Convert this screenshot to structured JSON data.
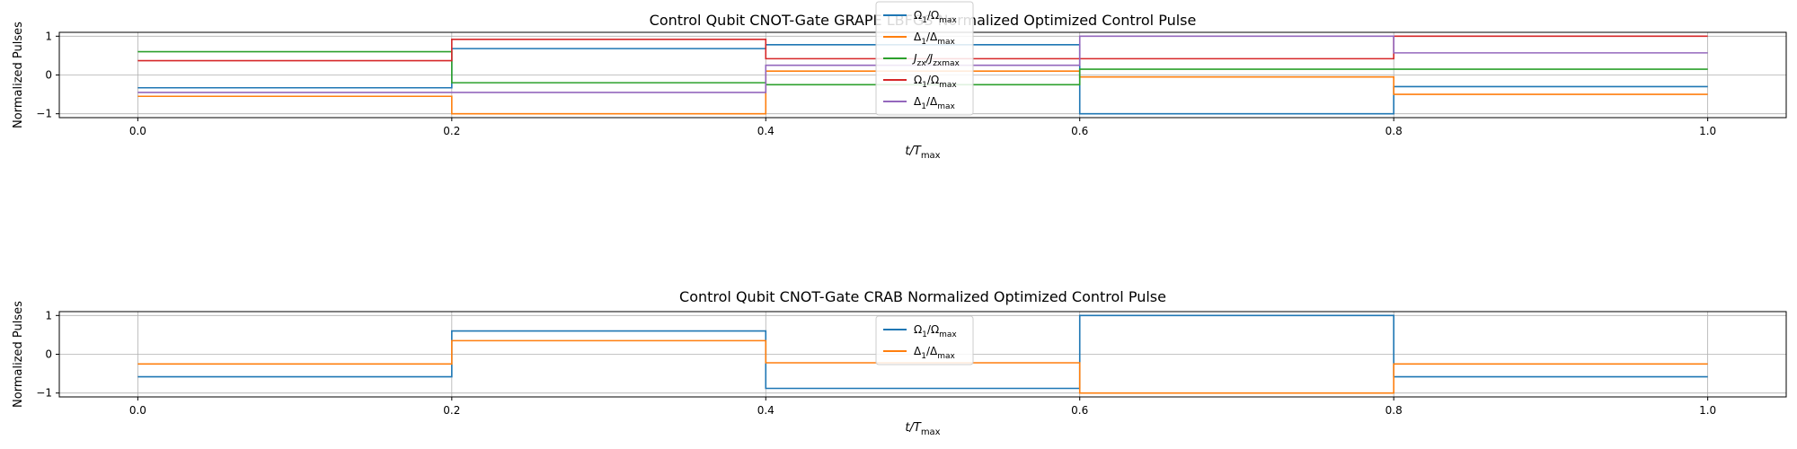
{
  "chart_data": [
    {
      "type": "line",
      "step": "post",
      "title": "Control Qubit CNOT-Gate GRAPE LBFGS Normalized Optimized Control Pulse",
      "xlabel": "t/T_max",
      "ylabel": "Normalized Pulses",
      "xlim": [
        -0.05,
        1.05
      ],
      "ylim": [
        -1.1,
        1.1
      ],
      "xticks": [
        "0.0",
        "0.2",
        "0.4",
        "0.6",
        "0.8",
        "1.0"
      ],
      "yticks": [
        "−1",
        "0",
        "1"
      ],
      "grid": true,
      "legend_position": "upper center",
      "x": [
        0.0,
        0.2,
        0.4,
        0.6,
        0.8,
        1.0
      ],
      "series": [
        {
          "name": "Ω1/Ωmax",
          "legend_main": "Ω",
          "legend_sub": "1",
          "legend_den": "Ω",
          "legend_den_sub": "max",
          "color": "#1f77b4",
          "values": [
            -0.33,
            0.68,
            0.78,
            -1.0,
            -0.3,
            -0.3
          ]
        },
        {
          "name": "Δ1/Δmax",
          "legend_main": "Δ",
          "legend_sub": "1",
          "legend_den": "Δ",
          "legend_den_sub": "max",
          "color": "#ff7f0e",
          "values": [
            -0.55,
            -1.0,
            0.1,
            -0.05,
            -0.5,
            -0.5
          ]
        },
        {
          "name": "Jzx/Jzxmax",
          "legend_main": "J",
          "legend_sub": "zx",
          "legend_den": "J",
          "legend_den_sub": "zxmax",
          "color": "#2ca02c",
          "values": [
            0.6,
            -0.2,
            -0.25,
            0.15,
            0.15,
            0.15
          ]
        },
        {
          "name": "Ω1/Ωmax",
          "legend_main": "Ω",
          "legend_sub": "1",
          "legend_den": "Ω",
          "legend_den_sub": "max",
          "color": "#d62728",
          "values": [
            0.37,
            0.92,
            0.42,
            0.42,
            1.0,
            1.0
          ]
        },
        {
          "name": "Δ1/Δmax",
          "legend_main": "Δ",
          "legend_sub": "1",
          "legend_den": "Δ",
          "legend_den_sub": "max",
          "color": "#9467bd",
          "values": [
            -0.45,
            -0.45,
            0.25,
            1.0,
            0.57,
            0.57
          ]
        }
      ]
    },
    {
      "type": "line",
      "step": "post",
      "title": "Control Qubit CNOT-Gate CRAB Normalized Optimized Control Pulse",
      "xlabel": "t/T_max",
      "ylabel": "Normalized Pulses",
      "xlim": [
        -0.05,
        1.05
      ],
      "ylim": [
        -1.1,
        1.1
      ],
      "xticks": [
        "0.0",
        "0.2",
        "0.4",
        "0.6",
        "0.8",
        "1.0"
      ],
      "yticks": [
        "−1",
        "0",
        "1"
      ],
      "grid": true,
      "legend_position": "upper center",
      "x": [
        0.0,
        0.2,
        0.4,
        0.6,
        0.8,
        1.0
      ],
      "series": [
        {
          "name": "Ω1/Ωmax",
          "legend_main": "Ω",
          "legend_sub": "1",
          "legend_den": "Ω",
          "legend_den_sub": "max",
          "color": "#1f77b4",
          "values": [
            -0.58,
            0.6,
            -0.88,
            1.0,
            -0.58,
            -0.58
          ]
        },
        {
          "name": "Δ1/Δmax",
          "legend_main": "Δ",
          "legend_sub": "1",
          "legend_den": "Δ",
          "legend_den_sub": "max",
          "color": "#ff7f0e",
          "values": [
            -0.25,
            0.35,
            -0.22,
            -1.0,
            -0.25,
            -0.25
          ]
        }
      ]
    }
  ]
}
